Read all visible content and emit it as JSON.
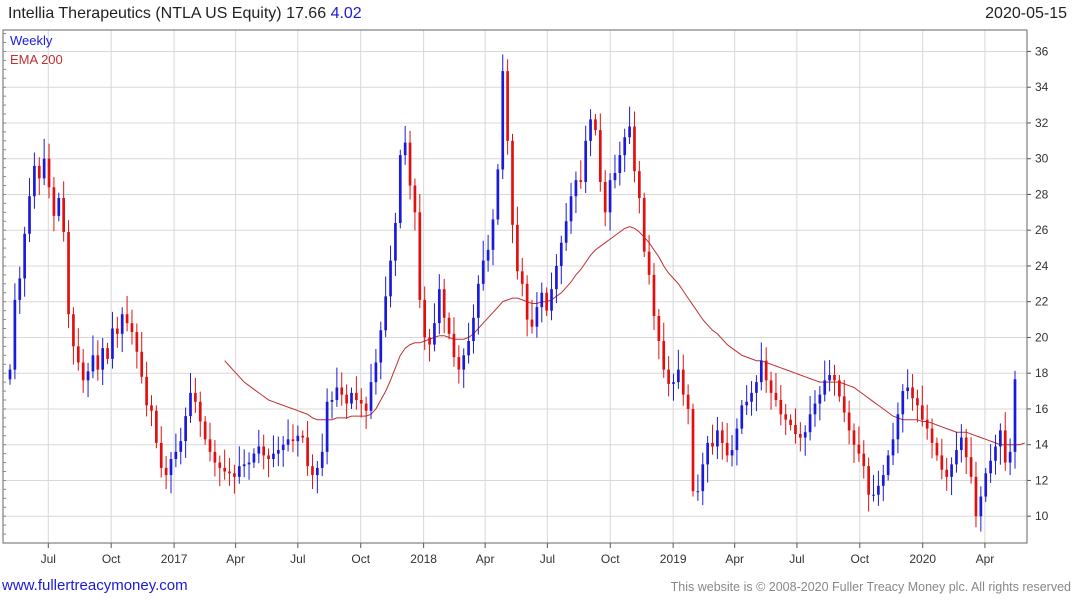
{
  "header": {
    "title": "Intellia Therapeutics (NTLA US Equity)",
    "price": "17.66",
    "change": "4.02",
    "date": "2020-05-15"
  },
  "footer": {
    "url": "www.fullertreacymoney.com",
    "copyright": "This website is © 2008-2020 Fuller Treacy Money plc. All rights reserved"
  },
  "colors": {
    "up": "#1a1adb",
    "down": "#e01010",
    "ema": "#c03030",
    "grid": "#d8d8d8"
  },
  "chart_data": {
    "type": "candlestick",
    "frequency": "Weekly",
    "legend": [
      {
        "label": "Weekly",
        "color": "#1a1adb"
      },
      {
        "label": "EMA 200",
        "color": "#c03030"
      }
    ],
    "y_axis": {
      "position": "right",
      "ylim": [
        8.5,
        37.2
      ],
      "ticks": [
        10,
        12,
        14,
        16,
        18,
        20,
        22,
        24,
        26,
        28,
        30,
        32,
        34,
        36
      ]
    },
    "x_axis": {
      "labels": [
        {
          "label": "Jul",
          "date": "2016-07-01"
        },
        {
          "label": "Oct",
          "date": "2016-10-01"
        },
        {
          "label": "2017",
          "date": "2017-01-01"
        },
        {
          "label": "Apr",
          "date": "2017-04-01"
        },
        {
          "label": "Jul",
          "date": "2017-07-01"
        },
        {
          "label": "Oct",
          "date": "2017-10-01"
        },
        {
          "label": "2018",
          "date": "2018-01-01"
        },
        {
          "label": "Apr",
          "date": "2018-04-01"
        },
        {
          "label": "Jul",
          "date": "2018-07-01"
        },
        {
          "label": "Oct",
          "date": "2018-10-01"
        },
        {
          "label": "2019",
          "date": "2019-01-01"
        },
        {
          "label": "Apr",
          "date": "2019-04-01"
        },
        {
          "label": "Jul",
          "date": "2019-07-01"
        },
        {
          "label": "Oct",
          "date": "2019-10-01"
        },
        {
          "label": "2020",
          "date": "2020-01-01"
        },
        {
          "label": "Apr",
          "date": "2020-04-01"
        }
      ]
    },
    "date_range": [
      "2016-05-06",
      "2020-05-15"
    ],
    "weekly_closes": [
      18.2,
      22.1,
      23.3,
      25.8,
      27.9,
      29.6,
      28.9,
      30.0,
      28.4,
      26.8,
      27.8,
      25.9,
      21.3,
      19.5,
      18.6,
      17.6,
      18.1,
      19.0,
      18.2,
      19.4,
      18.8,
      20.5,
      20.2,
      21.3,
      20.8,
      20.3,
      19.2,
      17.8,
      16.2,
      15.9,
      14.1,
      12.7,
      12.3,
      13.2,
      13.6,
      14.2,
      15.6,
      16.9,
      16.4,
      15.3,
      14.3,
      13.6,
      13.0,
      12.7,
      12.5,
      12.4,
      12.2,
      12.8,
      12.9,
      13.0,
      13.5,
      13.9,
      13.4,
      13.2,
      13.5,
      13.7,
      14.0,
      14.3,
      14.2,
      14.5,
      14.4,
      12.8,
      12.3,
      12.7,
      13.6,
      16.4,
      16.5,
      17.2,
      16.8,
      16.3,
      16.9,
      16.5,
      16.3,
      15.9,
      17.5,
      18.6,
      20.4,
      22.3,
      24.3,
      26.4,
      30.2,
      30.9,
      28.5,
      27.0,
      22.1,
      20.0,
      19.6,
      20.8,
      22.7,
      21.1,
      20.2,
      18.9,
      18.2,
      19.0,
      19.8,
      21.1,
      23.0,
      24.3,
      24.9,
      26.6,
      29.4,
      34.9,
      31.0,
      26.3,
      23.7,
      23.0,
      21.0,
      20.6,
      21.7,
      22.5,
      21.5,
      22.7,
      24.0,
      25.3,
      26.5,
      27.9,
      28.8,
      28.7,
      31.0,
      32.2,
      31.6,
      28.7,
      27.0,
      28.8,
      29.2,
      30.2,
      31.2,
      31.8,
      29.3,
      27.8,
      24.8,
      23.5,
      21.2,
      19.8,
      18.2,
      17.4,
      17.5,
      18.2,
      16.8,
      16.0,
      11.4,
      11.4,
      12.9,
      14.1,
      13.9,
      14.8,
      14.1,
      13.4,
      13.7,
      14.9,
      16.2,
      16.4,
      16.9,
      17.5,
      18.7,
      17.6,
      16.9,
      16.5,
      15.7,
      15.4,
      15.1,
      14.6,
      14.4,
      14.7,
      15.7,
      16.3,
      16.8,
      17.6,
      17.9,
      17.6,
      16.7,
      15.8,
      14.8,
      14.0,
      13.5,
      12.8,
      11.2,
      11.2,
      11.7,
      12.3,
      13.4,
      14.3,
      15.7,
      17.0,
      17.2,
      16.6,
      16.2,
      15.4,
      14.9,
      14.1,
      13.4,
      12.6,
      12.2,
      12.9,
      13.7,
      14.4,
      13.3,
      12.2,
      10.0,
      11.1,
      12.4,
      13.1,
      13.9,
      14.8,
      13.0,
      13.6,
      17.66
    ],
    "ema200": [
      null,
      null,
      null,
      null,
      null,
      null,
      null,
      null,
      null,
      null,
      null,
      null,
      null,
      null,
      null,
      null,
      null,
      null,
      null,
      null,
      null,
      null,
      null,
      null,
      null,
      null,
      null,
      null,
      null,
      null,
      null,
      null,
      null,
      null,
      null,
      null,
      null,
      null,
      null,
      null,
      null,
      null,
      null,
      null,
      18.7,
      18.4,
      18.1,
      17.8,
      17.5,
      17.3,
      17.1,
      16.9,
      16.7,
      16.5,
      16.4,
      16.3,
      16.2,
      16.1,
      16.0,
      15.9,
      15.8,
      15.7,
      15.5,
      15.4,
      15.4,
      15.4,
      15.4,
      15.5,
      15.5,
      15.5,
      15.6,
      15.6,
      15.6,
      15.6,
      15.7,
      16.0,
      16.5,
      17.0,
      17.6,
      18.3,
      19.0,
      19.4,
      19.6,
      19.7,
      19.7,
      19.8,
      19.9,
      20.0,
      20.1,
      20.1,
      20.0,
      19.9,
      19.9,
      19.9,
      20.0,
      20.2,
      20.5,
      20.8,
      21.1,
      21.4,
      21.7,
      22.0,
      22.1,
      22.2,
      22.2,
      22.1,
      22.0,
      21.9,
      21.9,
      22.0,
      22.0,
      22.1,
      22.3,
      22.5,
      22.8,
      23.1,
      23.5,
      23.8,
      24.2,
      24.6,
      24.9,
      25.1,
      25.3,
      25.5,
      25.7,
      25.9,
      26.1,
      26.2,
      26.1,
      25.9,
      25.6,
      25.3,
      24.9,
      24.5,
      24.0,
      23.6,
      23.3,
      23.0,
      22.6,
      22.2,
      21.8,
      21.4,
      21.0,
      20.7,
      20.4,
      20.2,
      19.9,
      19.6,
      19.4,
      19.2,
      19.0,
      18.9,
      18.8,
      18.7,
      18.7,
      18.6,
      18.5,
      18.4,
      18.3,
      18.2,
      18.1,
      18.0,
      17.9,
      17.8,
      17.7,
      17.6,
      17.5,
      17.5,
      17.5,
      17.5,
      17.5,
      17.4,
      17.3,
      17.2,
      17.0,
      16.8,
      16.6,
      16.4,
      16.2,
      16.0,
      15.8,
      15.6,
      15.5,
      15.4,
      15.4,
      15.4,
      15.4,
      15.3,
      15.3,
      15.2,
      15.1,
      15.0,
      14.9,
      14.8,
      14.7,
      14.7,
      14.7,
      14.6,
      14.5,
      14.4,
      14.3,
      14.2,
      14.1,
      14.0,
      14.0,
      14.0,
      14.0,
      14.0,
      14.1
    ]
  }
}
